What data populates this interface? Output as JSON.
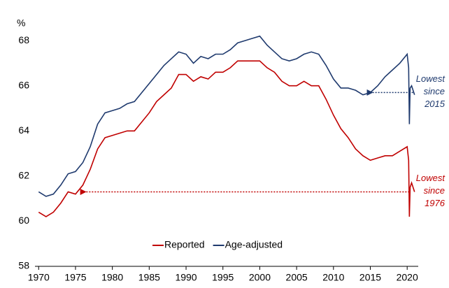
{
  "chart_data": {
    "type": "line",
    "y_label": "%",
    "xlim": [
      1969.5,
      2021.5
    ],
    "xticks": [
      1970,
      1975,
      1980,
      1985,
      1990,
      1995,
      2000,
      2005,
      2010,
      2015,
      2020
    ],
    "ylim": [
      58,
      68.5
    ],
    "yticks": [
      58,
      60,
      62,
      64,
      66,
      68
    ],
    "legend": "lower center",
    "x": [
      1970,
      1971,
      1972,
      1973,
      1974,
      1975,
      1976,
      1977,
      1978,
      1979,
      1980,
      1981,
      1982,
      1983,
      1984,
      1985,
      1986,
      1987,
      1988,
      1989,
      1990,
      1991,
      1992,
      1993,
      1994,
      1995,
      1996,
      1997,
      1998,
      1999,
      2000,
      2001,
      2002,
      2003,
      2004,
      2005,
      2006,
      2007,
      2008,
      2009,
      2010,
      2011,
      2012,
      2013,
      2014,
      2015,
      2016,
      2017,
      2018,
      2019,
      2020,
      2020.2,
      2020.3,
      2020.4,
      2020.6,
      2020.9,
      2021
    ],
    "series": [
      {
        "name": "Reported",
        "color": "#c00000",
        "values": [
          60.4,
          60.2,
          60.4,
          60.8,
          61.3,
          61.2,
          61.6,
          62.3,
          63.2,
          63.7,
          63.8,
          63.9,
          64.0,
          64.0,
          64.4,
          64.8,
          65.3,
          65.6,
          65.9,
          66.5,
          66.5,
          66.2,
          66.4,
          66.3,
          66.6,
          66.6,
          66.8,
          67.1,
          67.1,
          67.1,
          67.1,
          66.8,
          66.6,
          66.2,
          66.0,
          66.0,
          66.2,
          66.0,
          66.0,
          65.4,
          64.7,
          64.1,
          63.7,
          63.2,
          62.9,
          62.7,
          62.8,
          62.9,
          62.9,
          63.1,
          63.3,
          62.7,
          60.2,
          61.5,
          61.7,
          61.4,
          61.3
        ]
      },
      {
        "name": "Age-adjusted",
        "color": "#1f3a6e",
        "values": [
          61.3,
          61.1,
          61.2,
          61.6,
          62.1,
          62.2,
          62.6,
          63.3,
          64.3,
          64.8,
          64.9,
          65.0,
          65.2,
          65.3,
          65.7,
          66.1,
          66.5,
          66.9,
          67.2,
          67.5,
          67.4,
          67.0,
          67.3,
          67.2,
          67.4,
          67.4,
          67.6,
          67.9,
          68.0,
          68.1,
          68.2,
          67.8,
          67.5,
          67.2,
          67.1,
          67.2,
          67.4,
          67.5,
          67.4,
          66.9,
          66.3,
          65.9,
          65.9,
          65.8,
          65.6,
          65.7,
          66.0,
          66.4,
          66.7,
          67.0,
          67.4,
          66.8,
          64.3,
          65.9,
          66.0,
          65.7,
          65.6
        ]
      }
    ],
    "annotations": [
      {
        "lines": [
          "Lowest",
          "since",
          "2015"
        ],
        "color": "#1f3a6e",
        "y": 65.7,
        "x_from": 2020.8,
        "x_to": 2015.3
      },
      {
        "lines": [
          "Lowest",
          "since",
          "1976"
        ],
        "color": "#c00000",
        "y": 61.3,
        "x_from": 2020.3,
        "x_to": 1976.4
      }
    ]
  }
}
